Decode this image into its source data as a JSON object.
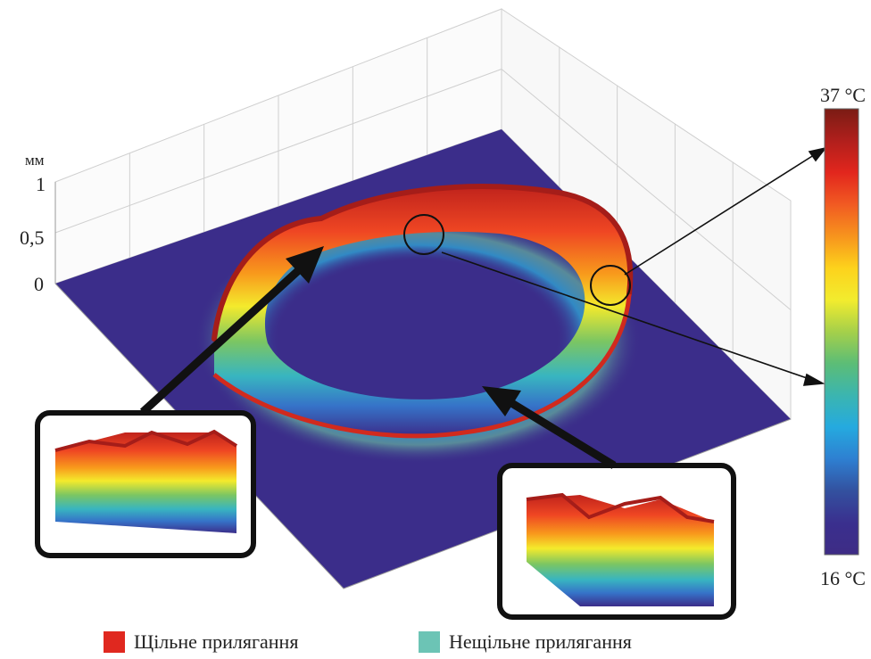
{
  "chart_data": {
    "type": "surface3d",
    "z_unit": "мм",
    "z_ticks": [
      "1",
      "0,5",
      "0"
    ],
    "z_range": [
      0,
      1
    ],
    "colorbar": {
      "max_label": "37 °C",
      "min_label": "16 °C",
      "range": [
        16,
        37
      ],
      "colors": [
        "#7a1c14",
        "#b01f1c",
        "#e2261d",
        "#f15a22",
        "#f7941d",
        "#fdd21c",
        "#f2ec2e",
        "#a5d04a",
        "#5cbd76",
        "#3bb5b0",
        "#25aadf",
        "#2e7fd1",
        "#33519f",
        "#3a2f8e",
        "#3e2c85"
      ]
    },
    "legend": [
      {
        "label": "Щільне прилягання",
        "color": "#e0281f"
      },
      {
        "label": "Нещільне прилягання",
        "color": "#6cc4b5"
      }
    ],
    "grid": true
  }
}
